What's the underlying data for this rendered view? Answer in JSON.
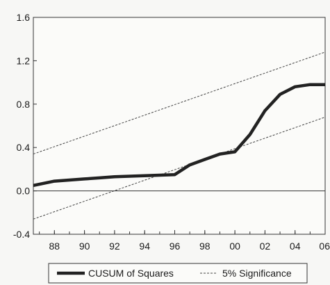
{
  "chart_data": {
    "type": "line",
    "title": "",
    "xlabel": "",
    "ylabel": "",
    "xlim": [
      1986.6,
      2006
    ],
    "ylim": [
      -0.4,
      1.6
    ],
    "x_ticks": [
      1988,
      1990,
      1992,
      1994,
      1996,
      1998,
      2000,
      2002,
      2004,
      2006
    ],
    "x_tick_labels": [
      "88",
      "90",
      "92",
      "94",
      "96",
      "98",
      "00",
      "02",
      "04",
      "06"
    ],
    "y_ticks": [
      -0.4,
      0.0,
      0.4,
      0.8,
      1.2,
      1.6
    ],
    "y_tick_labels": [
      "-0.4",
      "0.0",
      "0.4",
      "0.8",
      "1.2",
      "1.6"
    ],
    "zero_line": true,
    "grid": false,
    "legend_position": "bottom",
    "series": [
      {
        "name": "CUSUM of Squares",
        "style": "solid-thick",
        "color": "#222222",
        "x": [
          1986.6,
          1988,
          1989,
          1990,
          1991,
          1992,
          1993,
          1994,
          1995,
          1996,
          1997,
          1998,
          1999,
          2000,
          2001,
          2002,
          2003,
          2004,
          2005,
          2006
        ],
        "y": [
          0.05,
          0.09,
          0.1,
          0.11,
          0.12,
          0.13,
          0.135,
          0.14,
          0.145,
          0.15,
          0.24,
          0.29,
          0.34,
          0.36,
          0.52,
          0.74,
          0.89,
          0.96,
          0.98,
          0.98
        ]
      },
      {
        "name": "5% Significance",
        "style": "dashed",
        "color": "#444444",
        "segments": [
          {
            "x": [
              1986.6,
              2006
            ],
            "y": [
              0.34,
              1.28
            ]
          },
          {
            "x": [
              1986.6,
              2006
            ],
            "y": [
              -0.26,
              0.68
            ]
          }
        ]
      }
    ]
  }
}
